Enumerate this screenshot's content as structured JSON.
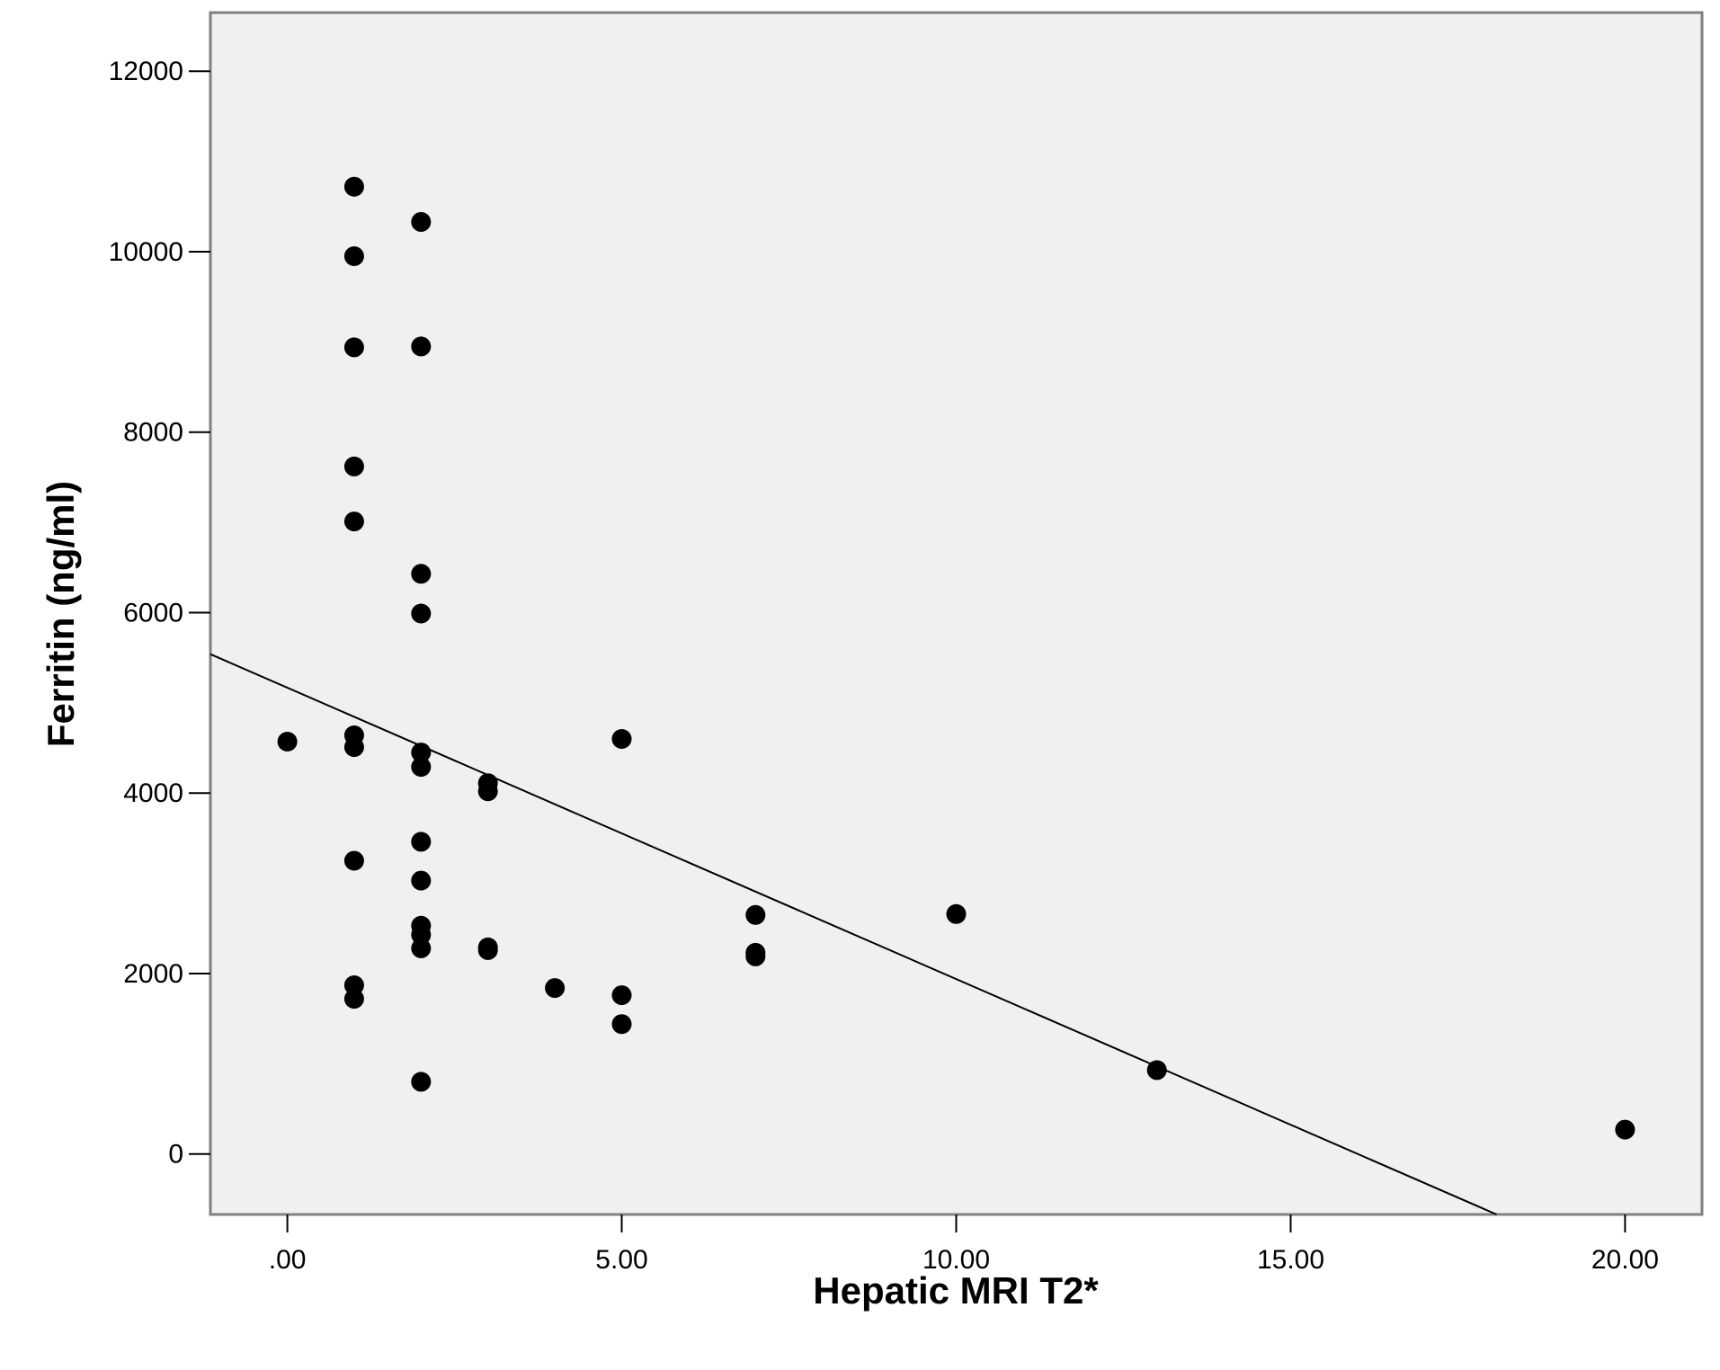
{
  "chart_data": {
    "type": "scatter",
    "title": "",
    "xlabel": "Hepatic MRI T2*",
    "ylabel": "Ferritin (ng/ml)",
    "xlim": [
      -1.15,
      21.15
    ],
    "ylim": [
      -670,
      12650
    ],
    "x_ticks": [
      0,
      5,
      10,
      15,
      20
    ],
    "x_tick_labels": [
      ".00",
      "5.00",
      "10.00",
      "15.00",
      "20.00"
    ],
    "y_ticks": [
      0,
      2000,
      4000,
      6000,
      8000,
      10000,
      12000
    ],
    "y_tick_labels": [
      "0",
      "2000",
      "4000",
      "6000",
      "8000",
      "10000",
      "12000"
    ],
    "grid": false,
    "legend": "none",
    "colors": {
      "plot_background": "#f0f0f0",
      "frame": "#808080",
      "points": "#000000",
      "fit_line": "#000000"
    },
    "series": [
      {
        "points": [
          [
            0,
            4570
          ],
          [
            1,
            10720
          ],
          [
            1,
            9950
          ],
          [
            1,
            8940
          ],
          [
            1,
            7620
          ],
          [
            1,
            7010
          ],
          [
            1,
            4640
          ],
          [
            1,
            4510
          ],
          [
            1,
            3250
          ],
          [
            1,
            1870
          ],
          [
            1,
            1720
          ],
          [
            2,
            10330
          ],
          [
            2,
            8950
          ],
          [
            2,
            6430
          ],
          [
            2,
            5990
          ],
          [
            2,
            4450
          ],
          [
            2,
            4290
          ],
          [
            2,
            3460
          ],
          [
            2,
            3030
          ],
          [
            2,
            2530
          ],
          [
            2,
            2430
          ],
          [
            2,
            2280
          ],
          [
            2,
            800
          ],
          [
            3,
            4110
          ],
          [
            3,
            4020
          ],
          [
            3,
            2290
          ],
          [
            3,
            2260
          ],
          [
            4,
            1840
          ],
          [
            5,
            4600
          ],
          [
            5,
            1760
          ],
          [
            5,
            1440
          ],
          [
            7,
            2650
          ],
          [
            7,
            2230
          ],
          [
            7,
            2190
          ],
          [
            10,
            2660
          ],
          [
            13,
            930
          ],
          [
            20,
            270
          ]
        ]
      }
    ],
    "fit_line": {
      "x": [
        -1.15,
        18.08
      ],
      "y": [
        5540,
        -670
      ]
    }
  }
}
